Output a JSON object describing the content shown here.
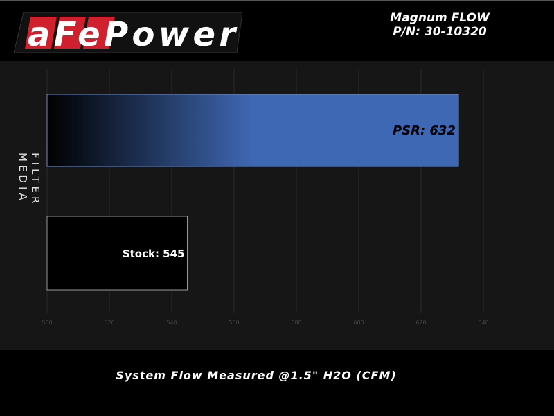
{
  "header": {
    "brand": "aFePower",
    "product": "Magnum FLOW",
    "part_number": "P/N: 30-10320"
  },
  "chart_data": {
    "type": "bar",
    "orientation": "horizontal",
    "categories": [
      "PSR",
      "Stock"
    ],
    "values": [
      632,
      545
    ],
    "data_labels": [
      "PSR: 632",
      "Stock: 545"
    ],
    "xlabel": "System Flow Measured @1.5\" H2O (CFM)",
    "ylabel": "FILTER MEDIA",
    "xlim": [
      500,
      650
    ],
    "xticks": [
      500,
      520,
      540,
      560,
      580,
      600,
      620,
      640
    ],
    "grid": true,
    "colors": {
      "PSR": "#3f68b4",
      "Stock": "#000000"
    }
  }
}
